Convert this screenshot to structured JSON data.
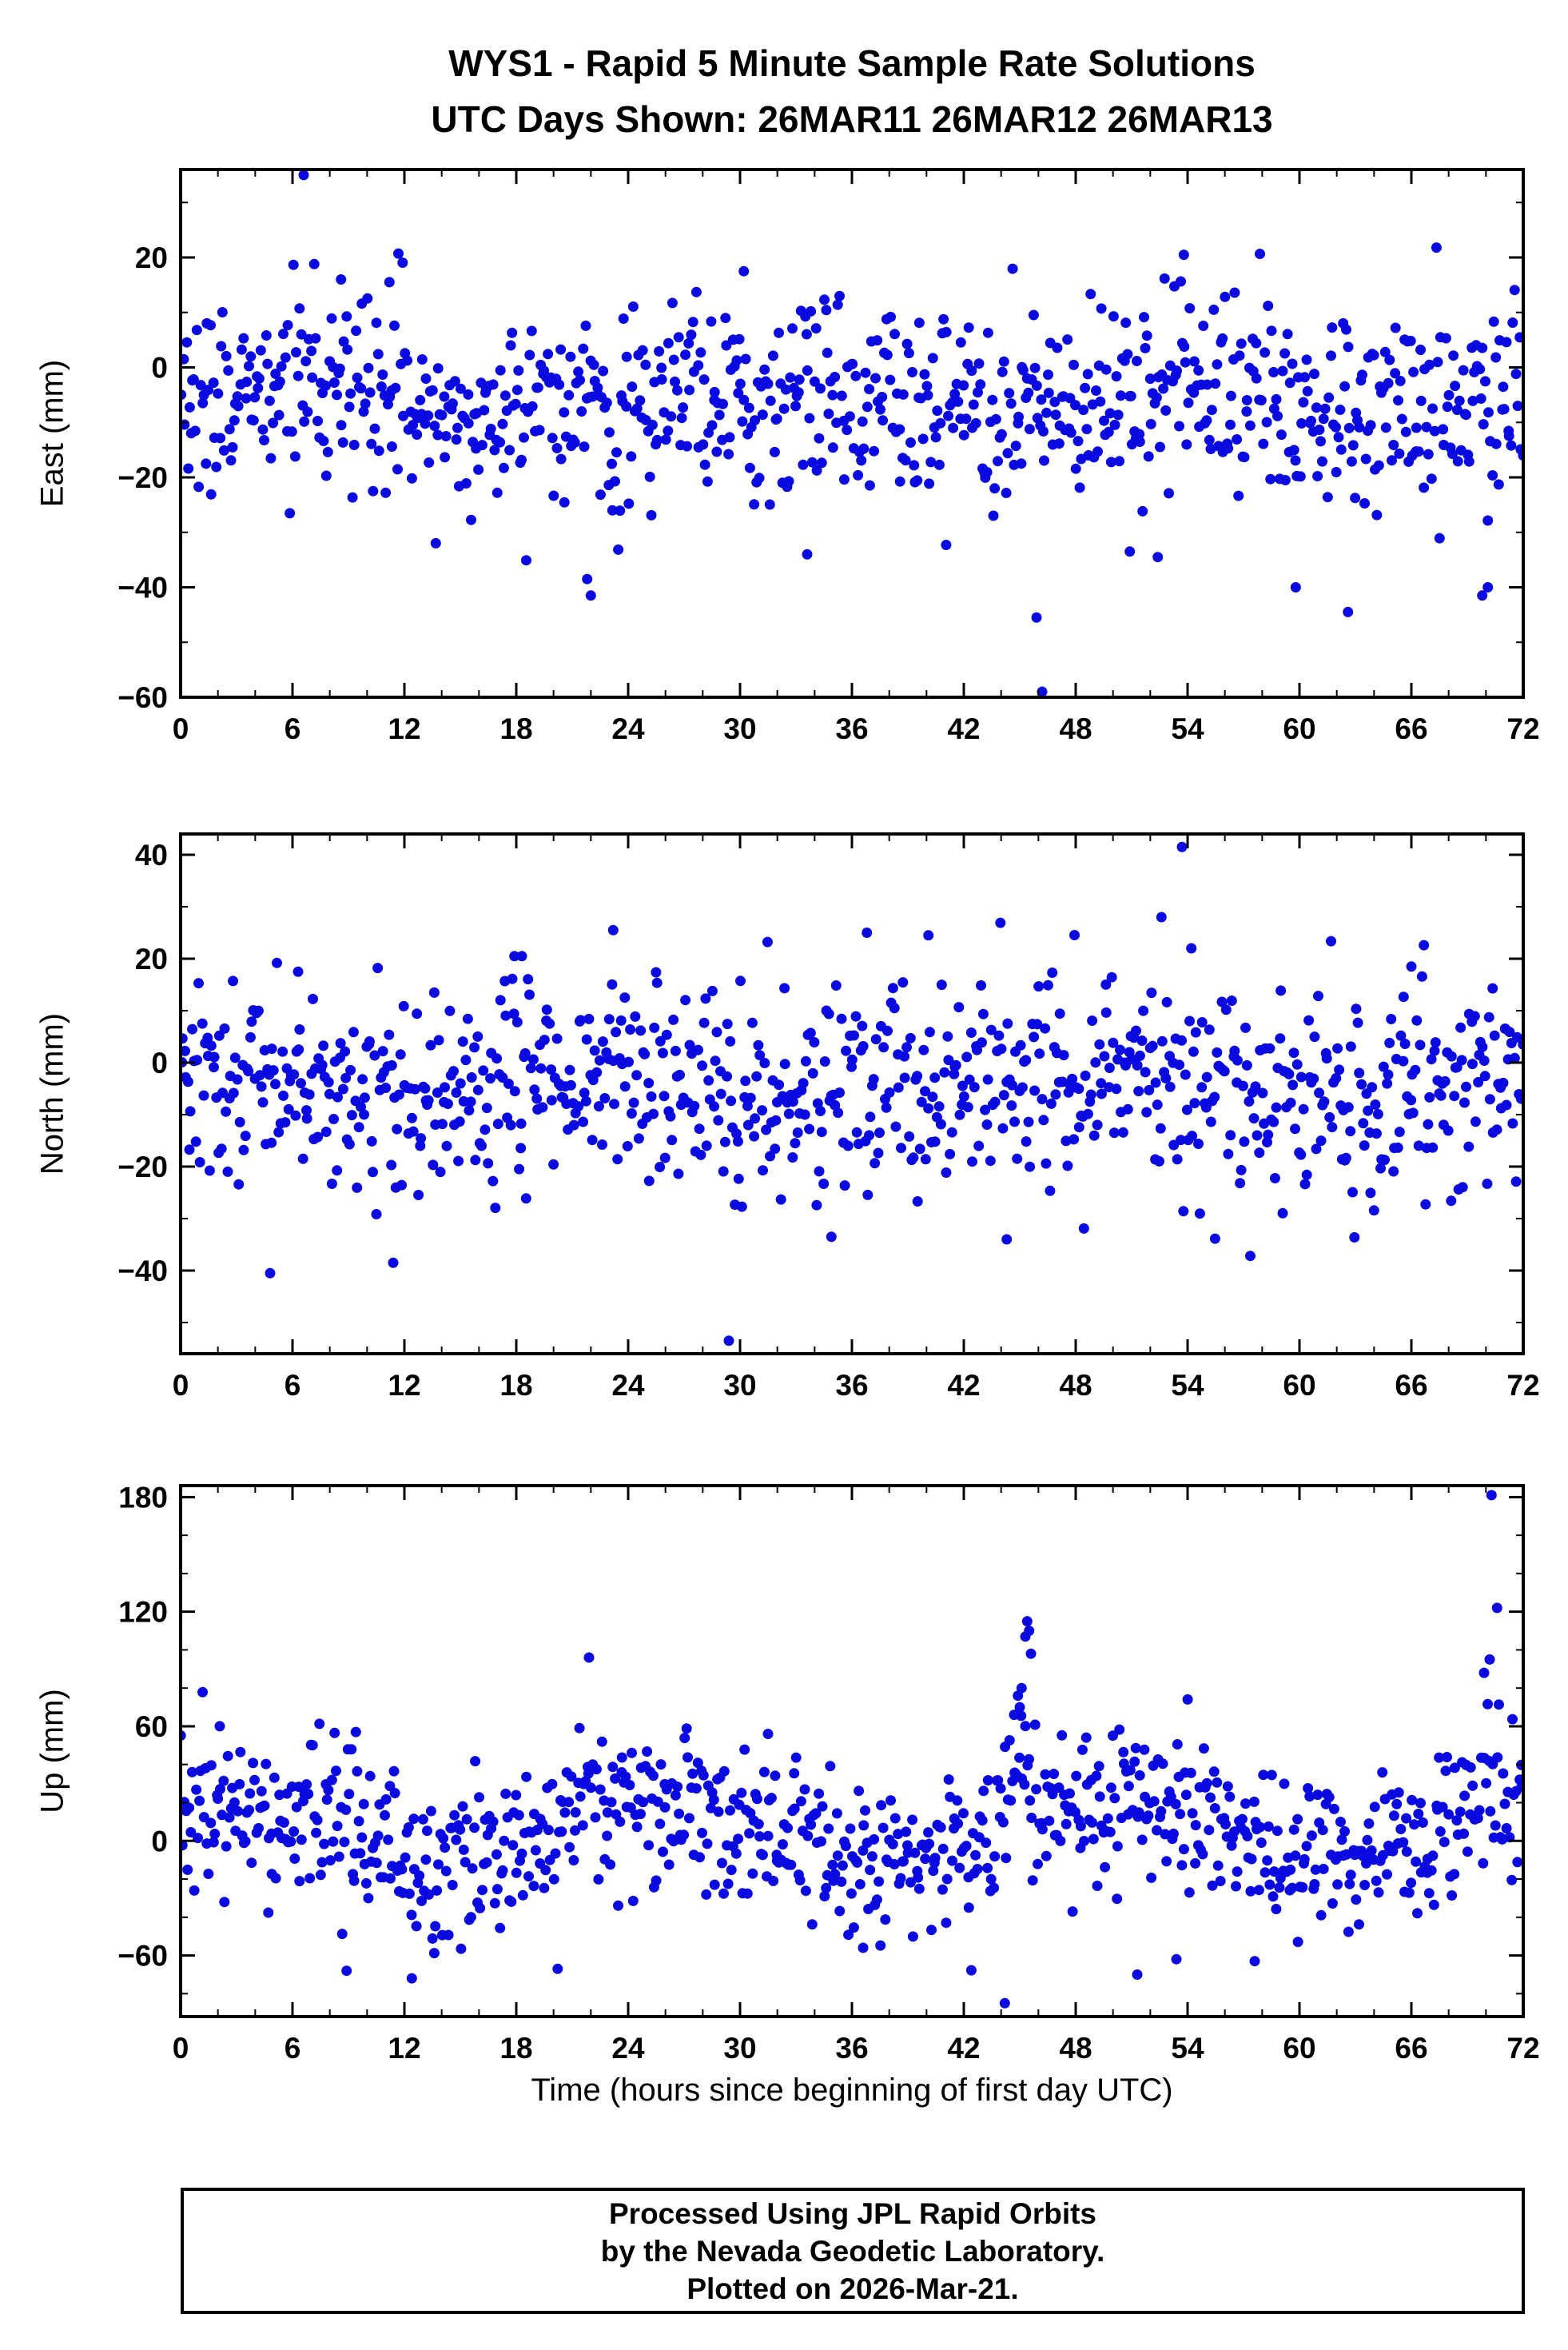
{
  "title": {
    "line1": "WYS1 - Rapid 5 Minute Sample Rate Solutions",
    "line2": "UTC Days Shown:  26MAR11 26MAR12 26MAR13"
  },
  "footer": {
    "line1": "Processed Using JPL Rapid Orbits",
    "line2": "by the Nevada Geodetic Laboratory.",
    "line3": "Plotted on 2026-Mar-21."
  },
  "xaxis": {
    "label": "Time (hours since beginning of first day UTC)",
    "min": 0,
    "max": 72,
    "major_ticks": [
      0,
      6,
      12,
      18,
      24,
      30,
      36,
      42,
      48,
      54,
      60,
      66,
      72
    ],
    "minor_step": 2
  },
  "marker": {
    "color": "#0a0ae0",
    "radius": 6.5
  },
  "chart_data": [
    {
      "type": "scatter",
      "name": "east",
      "ylabel": "East (mm)",
      "ylim": [
        -60,
        36
      ],
      "yticks": [
        20,
        0,
        -20,
        -40,
        -60
      ],
      "y_minor_step": 10,
      "points": {
        "seed": 1101,
        "count": 840,
        "mean": -6,
        "sd": 9,
        "wander_amp": 2,
        "wander_period": 24,
        "wander_offset": 0,
        "bumps": []
      },
      "outliers": [
        [
          6.6,
          35
        ],
        [
          46.2,
          -59
        ],
        [
          21.8,
          -38.5
        ],
        [
          22.0,
          -41.5
        ],
        [
          53.8,
          20.5
        ],
        [
          59.8,
          -40
        ],
        [
          62.6,
          -44.5
        ],
        [
          69.8,
          -41.5
        ],
        [
          70.1,
          -40
        ],
        [
          45.9,
          -45.5
        ],
        [
          33.6,
          -34
        ],
        [
          50.9,
          -33.5
        ],
        [
          52.4,
          -34.5
        ],
        [
          30.2,
          17.5
        ],
        [
          8.6,
          16
        ],
        [
          11.2,
          15.5
        ]
      ]
    },
    {
      "type": "scatter",
      "name": "north",
      "ylabel": "North (mm)",
      "ylim": [
        -56,
        44
      ],
      "yticks": [
        40,
        20,
        0,
        -20,
        -40
      ],
      "y_minor_step": 10,
      "points": {
        "seed": 2202,
        "count": 840,
        "mean": -5,
        "sd": 10,
        "wander_amp": 2,
        "wander_period": 24,
        "wander_offset": 6,
        "bumps": []
      },
      "outliers": [
        [
          53.7,
          41.5
        ],
        [
          29.4,
          -53.5
        ],
        [
          4.8,
          -40.5
        ],
        [
          11.4,
          -38.5
        ],
        [
          52.6,
          28
        ],
        [
          23.2,
          25.5
        ],
        [
          36.8,
          25
        ],
        [
          40.1,
          24.5
        ],
        [
          17.9,
          20.5
        ],
        [
          18.3,
          20.5
        ],
        [
          6.3,
          17.5
        ],
        [
          66.0,
          18.5
        ],
        [
          54.2,
          22
        ],
        [
          34.9,
          -33.5
        ],
        [
          44.3,
          -34
        ]
      ]
    },
    {
      "type": "scatter",
      "name": "up",
      "ylabel": "Up (mm)",
      "ylim": [
        -92,
        186
      ],
      "yticks": [
        180,
        120,
        60,
        0,
        -60
      ],
      "y_minor_step": 20,
      "points": {
        "seed": 3303,
        "count": 840,
        "mean": 4,
        "sd": 20,
        "wander_amp": 14,
        "wander_period": 24,
        "wander_offset": 4,
        "bumps": [
          [
            45.3,
            0.8,
            38
          ],
          [
            70.2,
            0.9,
            30
          ],
          [
            21.8,
            0.5,
            26
          ],
          [
            8.0,
            1.2,
            14
          ]
        ]
      },
      "outliers": [
        [
          70.3,
          181
        ],
        [
          70.6,
          122
        ],
        [
          70.2,
          95
        ],
        [
          69.9,
          88
        ],
        [
          45.4,
          115
        ],
        [
          45.5,
          110
        ],
        [
          45.3,
          107
        ],
        [
          45.6,
          98
        ],
        [
          45.1,
          80
        ],
        [
          44.9,
          76
        ],
        [
          45.0,
          70
        ],
        [
          44.7,
          66
        ],
        [
          21.9,
          96
        ],
        [
          44.2,
          -85
        ],
        [
          51.3,
          -70
        ],
        [
          8.9,
          -68
        ],
        [
          12.4,
          -72
        ],
        [
          57.6,
          -63
        ],
        [
          36.6,
          -56
        ],
        [
          53.4,
          -62
        ],
        [
          2.1,
          60
        ],
        [
          9.4,
          57
        ],
        [
          31.5,
          56
        ]
      ]
    }
  ]
}
